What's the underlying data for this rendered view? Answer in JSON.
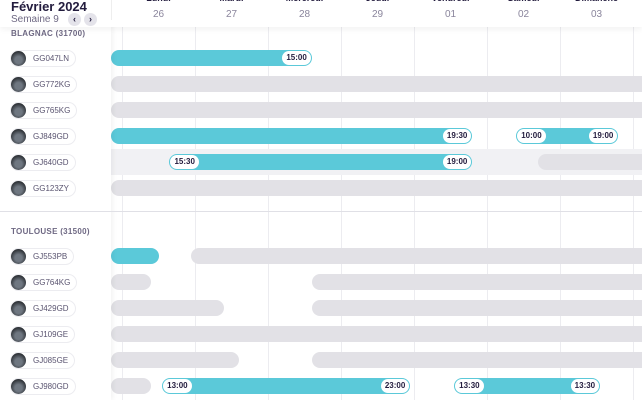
{
  "header": {
    "month": "Février 2024",
    "week": "Semaine 9",
    "prev": "‹",
    "next": "›",
    "days": [
      {
        "name": "Lundi",
        "num": "26"
      },
      {
        "name": "Mardi",
        "num": "27"
      },
      {
        "name": "Mercredi",
        "num": "28"
      },
      {
        "name": "Jeudi",
        "num": "29"
      },
      {
        "name": "Vendredi",
        "num": "01"
      },
      {
        "name": "Samedi",
        "num": "02"
      },
      {
        "name": "Dimanche",
        "num": "03"
      }
    ]
  },
  "groups": [
    {
      "label": "BLAGNAC (31700)",
      "vehicles": [
        {
          "plate": "GG047LN",
          "bars": [
            {
              "type": "teal",
              "from": -2,
              "to": 2.6,
              "end": "15:00"
            }
          ]
        },
        {
          "plate": "GG772KG",
          "bars": [
            {
              "type": "gray",
              "from": -2,
              "to": 8
            }
          ]
        },
        {
          "plate": "GG765KG",
          "bars": [
            {
              "type": "gray",
              "from": -2,
              "to": 8
            }
          ]
        },
        {
          "plate": "GJ849GD",
          "bars": [
            {
              "type": "teal",
              "from": -2,
              "to": 4.8,
              "end": "19:30"
            },
            {
              "type": "teal",
              "from": 5.4,
              "to": 6.8,
              "start": "10:00",
              "end": "19:00"
            }
          ]
        },
        {
          "plate": "GJ640GD",
          "highlight": true,
          "bars": [
            {
              "type": "teal",
              "from": 0.65,
              "to": 4.8,
              "start": "15:30",
              "end": "19:00"
            },
            {
              "type": "gray",
              "from": 5.7,
              "to": 8
            }
          ]
        },
        {
          "plate": "GG123ZY",
          "bars": [
            {
              "type": "gray",
              "from": -2,
              "to": 8
            }
          ]
        }
      ]
    },
    {
      "label": "TOULOUSE (31500)",
      "vehicles": [
        {
          "plate": "GJ553PB",
          "bars": [
            {
              "type": "teal",
              "from": -2,
              "to": 0.5
            },
            {
              "type": "gray",
              "from": 0.95,
              "to": 8
            }
          ]
        },
        {
          "plate": "GG764KG",
          "bars": [
            {
              "type": "gray",
              "from": -2,
              "to": 0.4
            },
            {
              "type": "gray",
              "from": 2.6,
              "to": 8
            }
          ]
        },
        {
          "plate": "GJ429GD",
          "bars": [
            {
              "type": "gray",
              "from": -2,
              "to": 1.4
            },
            {
              "type": "gray",
              "from": 2.6,
              "to": 8
            }
          ]
        },
        {
          "plate": "GJ109GE",
          "bars": [
            {
              "type": "gray",
              "from": -2,
              "to": 8
            }
          ]
        },
        {
          "plate": "GJ085GE",
          "bars": [
            {
              "type": "gray",
              "from": -2,
              "to": 1.6
            },
            {
              "type": "gray",
              "from": 2.6,
              "to": 8
            }
          ]
        },
        {
          "plate": "GJ980GD",
          "bars": [
            {
              "type": "gray",
              "from": -2,
              "to": 0.4
            },
            {
              "type": "teal",
              "from": 0.55,
              "to": 3.95,
              "start": "13:00",
              "end": "23:00"
            },
            {
              "type": "teal",
              "from": 4.55,
              "to": 6.55,
              "start": "13:30",
              "end": "13:30"
            }
          ]
        }
      ]
    }
  ]
}
